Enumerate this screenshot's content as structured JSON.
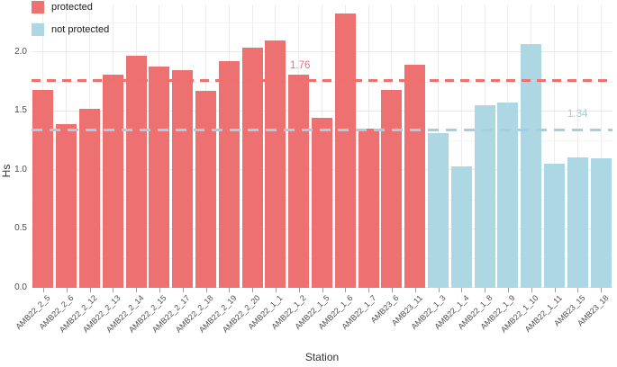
{
  "chart_data": {
    "type": "bar",
    "title": "",
    "xlabel": "Station",
    "ylabel": "Hs",
    "ylim": [
      0,
      2.4
    ],
    "y_ticks": [
      0.0,
      0.5,
      1.0,
      1.5,
      2.0
    ],
    "y_tick_labels": [
      "0.0",
      "0.5",
      "1.0",
      "1.5",
      "2.0"
    ],
    "y_minor_ticks": [
      0.25,
      0.75,
      1.25,
      1.75,
      2.25
    ],
    "grid": true,
    "legend_position": "top-left-inside",
    "categories": [
      "AMB22_2_5",
      "AMB22_2_6",
      "AMB22_2_12",
      "AMB22_2_13",
      "AMB22_2_14",
      "AMB22_2_15",
      "AMB22_2_17",
      "AMB22_2_18",
      "AMB22_2_19",
      "AMB22_2_20",
      "AMB22_1_1",
      "AMB22_1_2",
      "AMB22_1_5",
      "AMB22_1_6",
      "AMB22_1_7",
      "AMB23_6",
      "AMB23_11",
      "AMB22_1_3",
      "AMB22_1_4",
      "AMB22_1_8",
      "AMB22_1_9",
      "AMB22_1_10",
      "AMB22_1_11",
      "AMB23_15",
      "AMB23_18"
    ],
    "values": [
      1.68,
      1.39,
      1.52,
      1.81,
      1.97,
      1.88,
      1.85,
      1.67,
      1.92,
      2.04,
      2.1,
      1.81,
      1.44,
      2.33,
      1.35,
      1.68,
      1.89,
      1.31,
      1.03,
      1.55,
      1.57,
      2.07,
      1.05,
      1.11,
      1.1
    ],
    "groups": [
      "protected",
      "protected",
      "protected",
      "protected",
      "protected",
      "protected",
      "protected",
      "protected",
      "protected",
      "protected",
      "protected",
      "protected",
      "protected",
      "protected",
      "protected",
      "protected",
      "protected",
      "not protected",
      "not protected",
      "not protected",
      "not protected",
      "not protected",
      "not protected",
      "not protected",
      "not protected"
    ],
    "series_colors": {
      "protected": "#ee7172",
      "not protected": "#aed7e4"
    },
    "legend": [
      {
        "label": "protected",
        "color": "#ee7172"
      },
      {
        "label": "not protected",
        "color": "#aed7e4"
      }
    ],
    "reference_lines": [
      {
        "label": "1.76",
        "value": 1.76,
        "color": "#ef6e6e",
        "series": "protected"
      },
      {
        "label": "1.34",
        "value": 1.34,
        "color": "#a5cfe0",
        "series": "not protected"
      }
    ]
  }
}
